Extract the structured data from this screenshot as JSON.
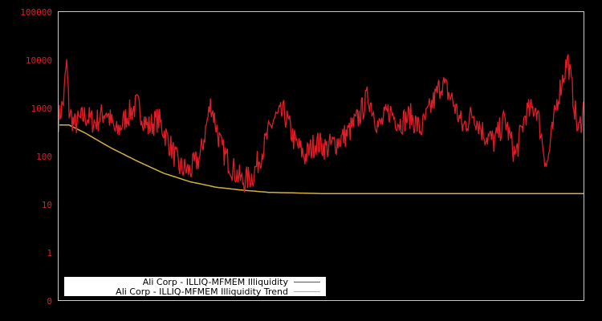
{
  "chart_data": {
    "type": "line",
    "title": "",
    "xlabel": "",
    "ylabel": "",
    "yscale": "log",
    "ylim": [
      0,
      100000
    ],
    "yticks": [
      "100000",
      "10000",
      "1000",
      "100",
      "10",
      "1",
      "0"
    ],
    "grid": false,
    "legend_position": "bottom-left",
    "colors": {
      "background": "#000000",
      "axis": "#c8c8c8",
      "tick_text": "#dc1e28",
      "series": "#dc1e28",
      "trend": "#d4b040"
    },
    "series": [
      {
        "name": "Ali Corp - ILLIQ-MFMEM Illiquidity",
        "color": "#dc1e28",
        "x_fraction": [
          0.0,
          0.01,
          0.015,
          0.02,
          0.03,
          0.05,
          0.07,
          0.09,
          0.11,
          0.13,
          0.15,
          0.17,
          0.19,
          0.21,
          0.23,
          0.25,
          0.27,
          0.29,
          0.31,
          0.33,
          0.35,
          0.37,
          0.39,
          0.41,
          0.43,
          0.45,
          0.47,
          0.49,
          0.51,
          0.53,
          0.55,
          0.57,
          0.59,
          0.61,
          0.63,
          0.65,
          0.67,
          0.69,
          0.71,
          0.73,
          0.75,
          0.77,
          0.79,
          0.81,
          0.83,
          0.85,
          0.87,
          0.89,
          0.9,
          0.91,
          0.93,
          0.95,
          0.97,
          0.99,
          1.0
        ],
        "values": [
          600,
          1500,
          10000,
          900,
          450,
          700,
          500,
          900,
          300,
          700,
          1200,
          400,
          600,
          200,
          60,
          50,
          100,
          1300,
          150,
          60,
          30,
          40,
          150,
          600,
          800,
          200,
          100,
          200,
          150,
          200,
          300,
          600,
          1800,
          400,
          900,
          500,
          700,
          350,
          1100,
          3500,
          1500,
          400,
          800,
          300,
          200,
          600,
          100,
          800,
          900,
          1100,
          60,
          1500,
          11000,
          300,
          1000
        ]
      },
      {
        "name": "Ali Corp - ILLIQ-MFMEM Illiquidity Trend",
        "color": "#d4b040",
        "x_fraction": [
          0.0,
          0.02,
          0.05,
          0.1,
          0.15,
          0.2,
          0.25,
          0.3,
          0.35,
          0.4,
          0.45,
          0.5,
          0.6,
          0.7,
          0.8,
          0.9,
          1.0
        ],
        "values": [
          450,
          450,
          310,
          150,
          80,
          45,
          30,
          23,
          20,
          18,
          17.5,
          17,
          17,
          17,
          17,
          17,
          17
        ]
      }
    ]
  },
  "legend": {
    "items": [
      {
        "label": "Ali Corp - ILLIQ-MFMEM Illiquidity",
        "color": "#dc1e28"
      },
      {
        "label": "Ali Corp - ILLIQ-MFMEM Illiquidity Trend",
        "color": "#d4b040"
      }
    ]
  }
}
